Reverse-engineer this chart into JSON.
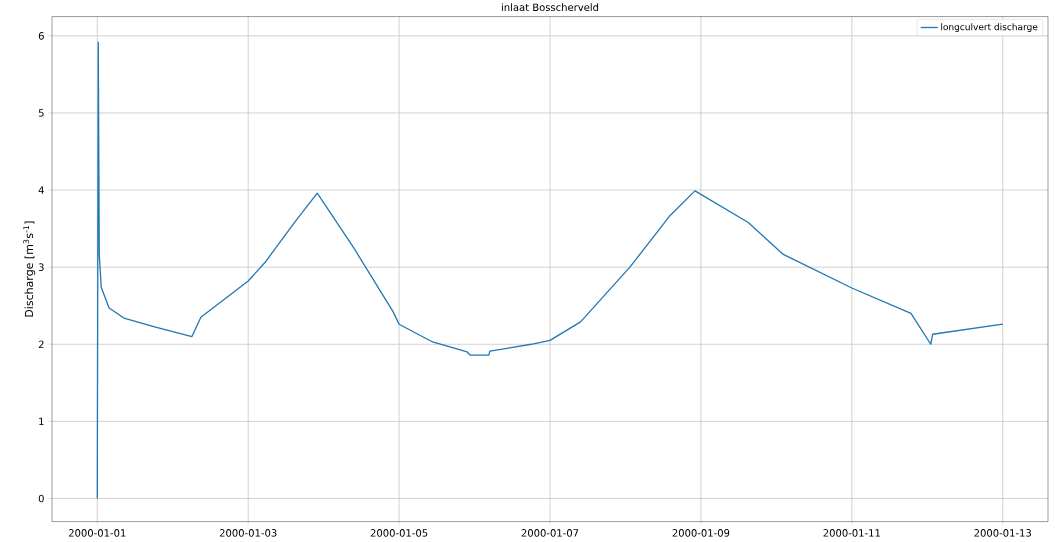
{
  "chart_data": {
    "type": "line",
    "title": "inlaat Bosscherveld",
    "ylabel": "Discharge [m$^{3}$s$^{-1}$]",
    "x": [
      "2000-01-01T00:00",
      "2000-01-01T00:19",
      "2000-01-01T00:38",
      "2000-01-01T01:15",
      "2000-01-01T03:46",
      "2000-01-01T08:28",
      "2000-01-01T18:50",
      "2000-01-02T06:07",
      "2000-01-02T08:57",
      "2000-01-03T00:00",
      "2000-01-03T05:20",
      "2000-01-03T14:45",
      "2000-01-03T21:58",
      "2000-01-04T09:35",
      "2000-01-04T22:07",
      "2000-01-05T00:00",
      "2000-01-05T10:40",
      "2000-01-05T21:39",
      "2000-01-05T22:35",
      "2000-01-06T04:33",
      "2000-01-06T04:52",
      "2000-01-06T18:03",
      "2000-01-07T00:00",
      "2000-01-07T09:43",
      "2000-01-08T01:25",
      "2000-01-08T13:58",
      "2000-01-08T22:07",
      "2000-01-09T15:03",
      "2000-01-10T02:02",
      "2000-01-11T00:00",
      "2000-01-11T18:49",
      "2000-01-12T01:06",
      "2000-01-12T01:43",
      "2000-01-13T00:00"
    ],
    "series": [
      {
        "name": "longculvert discharge",
        "color": "#1f77b4",
        "values": [
          0,
          5.92,
          3.16,
          2.74,
          2.47,
          2.34,
          2.22,
          2.1,
          2.35,
          2.82,
          3.06,
          3.58,
          3.96,
          3.25,
          2.42,
          2.26,
          2.03,
          1.9,
          1.86,
          1.86,
          1.91,
          2.0,
          2.05,
          2.29,
          3.0,
          3.66,
          3.99,
          3.58,
          3.17,
          2.73,
          2.4,
          2.0,
          2.13,
          2.26
        ]
      }
    ],
    "xlim": [
      "1999-12-31T09:36",
      "2000-01-13T14:24"
    ],
    "ylim": [
      -0.3,
      6.25
    ],
    "xticks": [
      "2000-01-01",
      "2000-01-03",
      "2000-01-05",
      "2000-01-07",
      "2000-01-09",
      "2000-01-11",
      "2000-01-13"
    ],
    "yticks": [
      0,
      1,
      2,
      3,
      4,
      5,
      6
    ],
    "grid": true,
    "legend": "top right",
    "marker": "none",
    "line_style": "solid"
  }
}
